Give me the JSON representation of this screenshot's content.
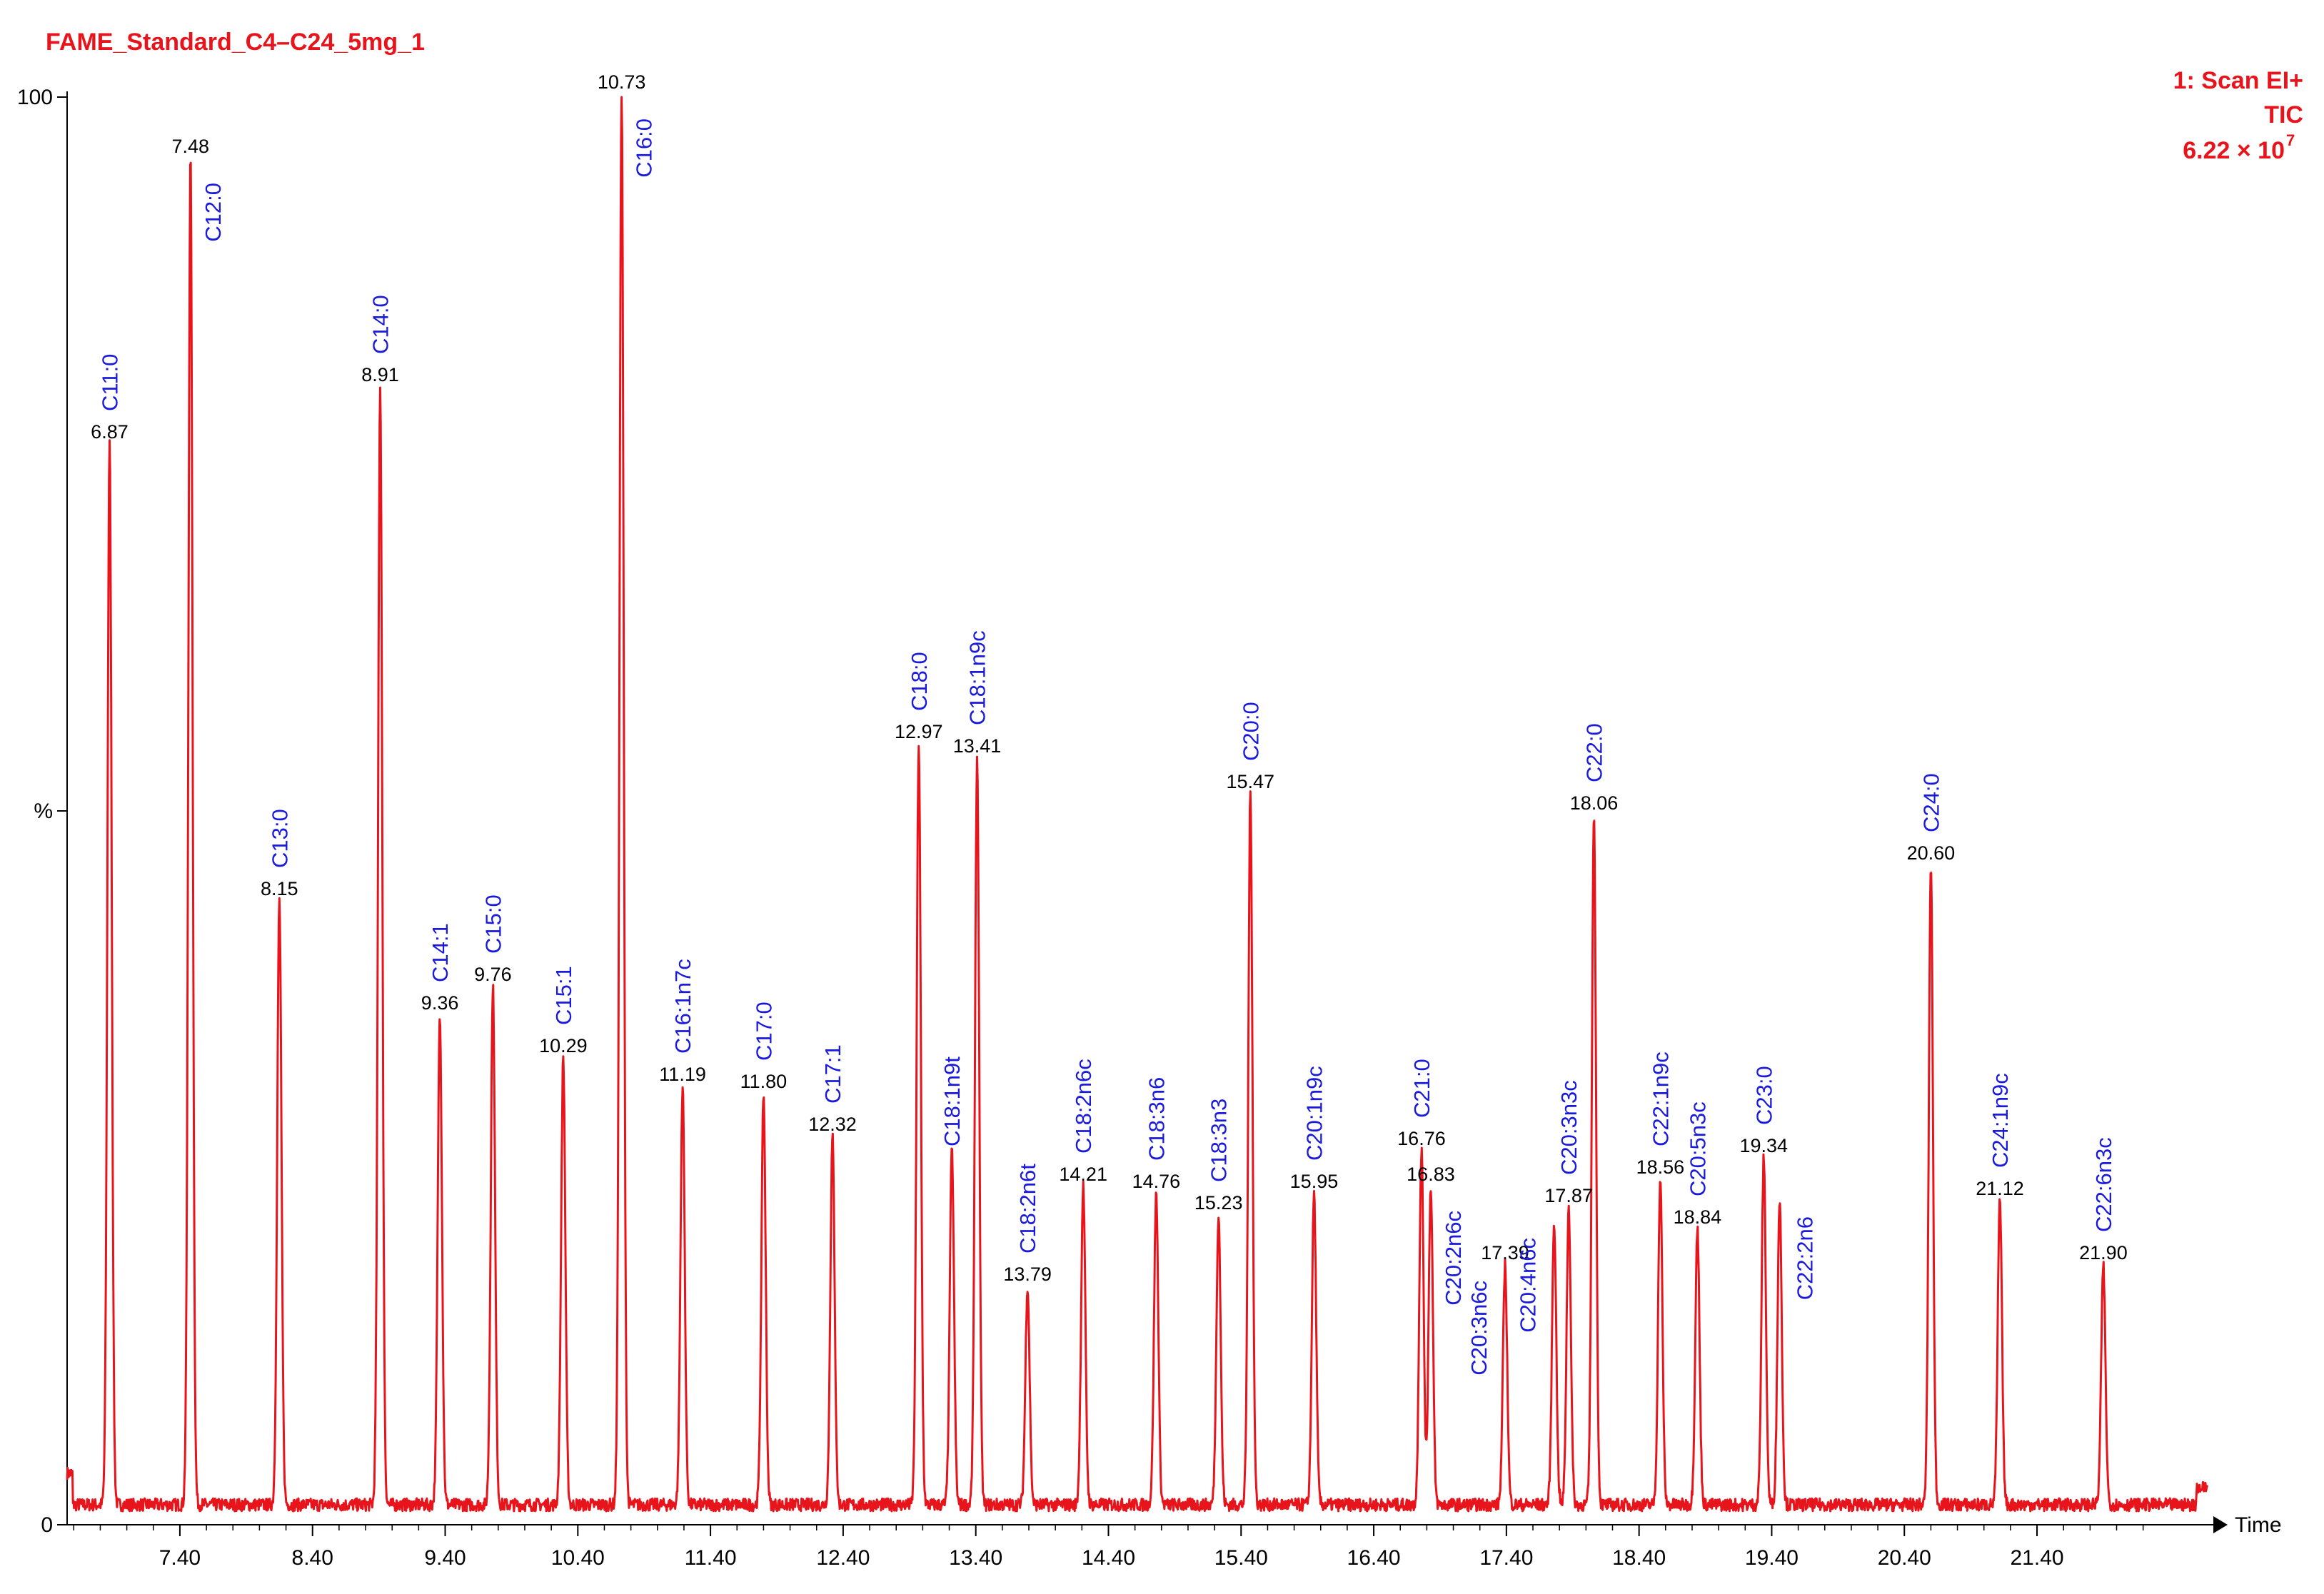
{
  "chart_data": {
    "type": "line",
    "title": "FAME_Standard_C4–C24_5mg_1",
    "scan_info": [
      "1: Scan EI+",
      "TIC",
      "6.22 × 10"
    ],
    "scan_exponent": "7",
    "xlabel": "Time",
    "ylabel": "%",
    "y_ticks": [
      "100",
      "%",
      "0"
    ],
    "xlim": [
      6.55,
      22.74
    ],
    "ylim": [
      0,
      100
    ],
    "x_ticks": [
      "7.40",
      "8.40",
      "9.40",
      "10.40",
      "11.40",
      "12.40",
      "13.40",
      "14.40",
      "15.40",
      "16.40",
      "17.40",
      "18.40",
      "19.40",
      "20.40",
      "21.40"
    ],
    "peaks": [
      {
        "rt": 6.87,
        "rt_label": "6.87",
        "height": 75.5,
        "compound": "C11:0",
        "label_pos": "above"
      },
      {
        "rt": 7.48,
        "rt_label": "7.48",
        "height": 95.5,
        "compound": "C12:0",
        "label_pos": "right-high"
      },
      {
        "rt": 8.15,
        "rt_label": "8.15",
        "height": 43.5,
        "compound": "C13:0",
        "label_pos": "above"
      },
      {
        "rt": 8.91,
        "rt_label": "8.91",
        "height": 79.5,
        "compound": "C14:0",
        "label_pos": "above"
      },
      {
        "rt": 9.36,
        "rt_label": "9.36",
        "height": 35.5,
        "compound": "C14:1",
        "label_pos": "above"
      },
      {
        "rt": 9.76,
        "rt_label": "9.76",
        "height": 37.5,
        "compound": "C15:0",
        "label_pos": "above"
      },
      {
        "rt": 10.29,
        "rt_label": "10.29",
        "height": 32.5,
        "compound": "C15:1",
        "label_pos": "above"
      },
      {
        "rt": 10.73,
        "rt_label": "10.73",
        "height": 100,
        "compound": "C16:0",
        "label_pos": "right-high"
      },
      {
        "rt": 11.19,
        "rt_label": "11.19",
        "height": 30.5,
        "compound": "C16:1n7c",
        "label_pos": "above"
      },
      {
        "rt": 11.8,
        "rt_label": "11.80",
        "height": 30.0,
        "compound": "C17:0",
        "label_pos": "above"
      },
      {
        "rt": 12.32,
        "rt_label": "12.32",
        "height": 27.0,
        "compound": "C17:1",
        "label_pos": "above"
      },
      {
        "rt": 12.97,
        "rt_label": "12.97",
        "height": 54.5,
        "compound": "C18:0",
        "label_pos": "above"
      },
      {
        "rt": 13.22,
        "rt_label": "",
        "height": 26.0,
        "compound": "C18:1n9t",
        "label_pos": "above"
      },
      {
        "rt": 13.41,
        "rt_label": "13.41",
        "height": 53.5,
        "compound": "C18:1n9c",
        "label_pos": "above"
      },
      {
        "rt": 13.79,
        "rt_label": "13.79",
        "height": 16.5,
        "compound": "C18:2n6t",
        "label_pos": "above"
      },
      {
        "rt": 14.21,
        "rt_label": "14.21",
        "height": 23.5,
        "compound": "C18:2n6c",
        "label_pos": "above"
      },
      {
        "rt": 14.76,
        "rt_label": "14.76",
        "height": 23.0,
        "compound": "C18:3n6",
        "label_pos": "above"
      },
      {
        "rt": 15.23,
        "rt_label": "15.23",
        "height": 21.5,
        "compound": "C18:3n3",
        "label_pos": "above"
      },
      {
        "rt": 15.47,
        "rt_label": "15.47",
        "height": 51.0,
        "compound": "C20:0",
        "label_pos": "above"
      },
      {
        "rt": 15.95,
        "rt_label": "15.95",
        "height": 23.0,
        "compound": "C20:1n9c",
        "label_pos": "above"
      },
      {
        "rt": 16.76,
        "rt_label": "16.76",
        "height": 26.0,
        "compound": "C21:0",
        "label_pos": "above"
      },
      {
        "rt": 16.83,
        "rt_label": "16.83",
        "height": 23.5,
        "compound": "C20:2n6c",
        "label_pos": "right-high"
      },
      {
        "rt": 17.39,
        "rt_label": "17.39",
        "height": 18.0,
        "compound": "C20:3n6c",
        "label_pos": "below-left"
      },
      {
        "rt": 17.76,
        "rt_label": "",
        "height": 21.0,
        "compound": "C20:4n6c",
        "label_pos": "below-left"
      },
      {
        "rt": 17.87,
        "rt_label": "17.87",
        "height": 22.0,
        "compound": "C20:3n3c",
        "label_pos": "above"
      },
      {
        "rt": 18.06,
        "rt_label": "18.06",
        "height": 49.5,
        "compound": "C22:0",
        "label_pos": "above"
      },
      {
        "rt": 18.56,
        "rt_label": "18.56",
        "height": 24.0,
        "compound": "C22:1n9c",
        "label_pos": "above"
      },
      {
        "rt": 18.84,
        "rt_label": "18.84",
        "height": 20.5,
        "compound": "C20:5n3c",
        "label_pos": "above"
      },
      {
        "rt": 19.34,
        "rt_label": "19.34",
        "height": 25.5,
        "compound": "C23:0",
        "label_pos": "above"
      },
      {
        "rt": 19.46,
        "rt_label": "",
        "height": 22.5,
        "compound": "C22:2n6",
        "label_pos": "right-low"
      },
      {
        "rt": 20.6,
        "rt_label": "20.60",
        "height": 46.0,
        "compound": "C24:0",
        "label_pos": "above"
      },
      {
        "rt": 21.12,
        "rt_label": "21.12",
        "height": 22.5,
        "compound": "C24:1n9c",
        "label_pos": "above"
      },
      {
        "rt": 21.9,
        "rt_label": "21.90",
        "height": 18.0,
        "compound": "C22:6n3c",
        "label_pos": "above"
      }
    ],
    "trace_color": "#e8141c",
    "compound_label_color": "#1a1adc"
  }
}
